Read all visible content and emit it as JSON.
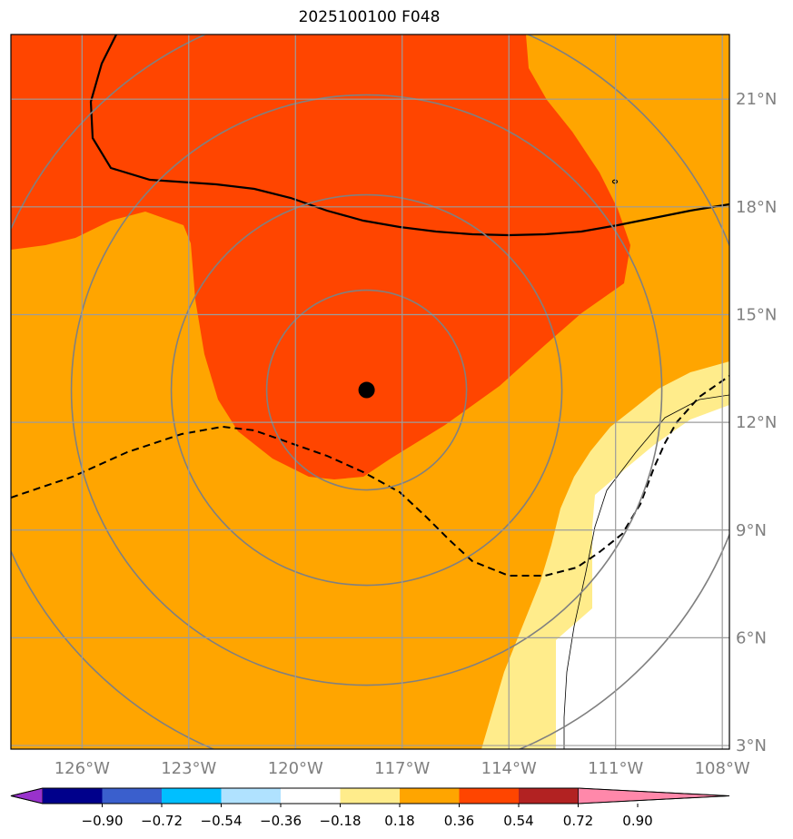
{
  "title": "2025100100 F048",
  "map": {
    "lon_range": [
      -128,
      -107.8
    ],
    "lat_range": [
      2.9,
      22.8
    ],
    "lon_ticks": [
      {
        "value": -126,
        "label": "126°W"
      },
      {
        "value": -123,
        "label": "123°W"
      },
      {
        "value": -120,
        "label": "120°W"
      },
      {
        "value": -117,
        "label": "117°W"
      },
      {
        "value": -114,
        "label": "114°W"
      },
      {
        "value": -111,
        "label": "111°W"
      },
      {
        "value": -108,
        "label": "108°W"
      }
    ],
    "lat_ticks": [
      {
        "value": 21,
        "label": "21°N"
      },
      {
        "value": 18,
        "label": "18°N"
      },
      {
        "value": 15,
        "label": "15°N"
      },
      {
        "value": 12,
        "label": "12°N"
      },
      {
        "value": 9,
        "label": "9°N"
      },
      {
        "value": 6,
        "label": "6°N"
      },
      {
        "value": 3,
        "label": "3°N"
      }
    ],
    "storm_center": {
      "lon": -118.0,
      "lat": 12.9
    },
    "range_rings": true,
    "gridlines": true,
    "tick_label_color": "#808080"
  },
  "colorbar": {
    "colors": [
      "#9932cc",
      "#00008b",
      "#3a5fcd",
      "#00bfff",
      "#b0e2ff",
      "#ffffff",
      "#ffec8b",
      "#ffa500",
      "#ff4500",
      "#b22222",
      "#ff88aa"
    ],
    "tick_labels": [
      "−0.90",
      "−0.72",
      "−0.54",
      "−0.36",
      "−0.18",
      "0.18",
      "0.36",
      "0.54",
      "0.72",
      "0.90"
    ],
    "extend": "both"
  },
  "colors": {
    "fill_high": "#ff4500",
    "fill_mid": "#ffa500",
    "fill_low": "#ffec8b",
    "fill_none": "#ffffff",
    "grid": "#9c9c9c",
    "rings": "#808080"
  }
}
